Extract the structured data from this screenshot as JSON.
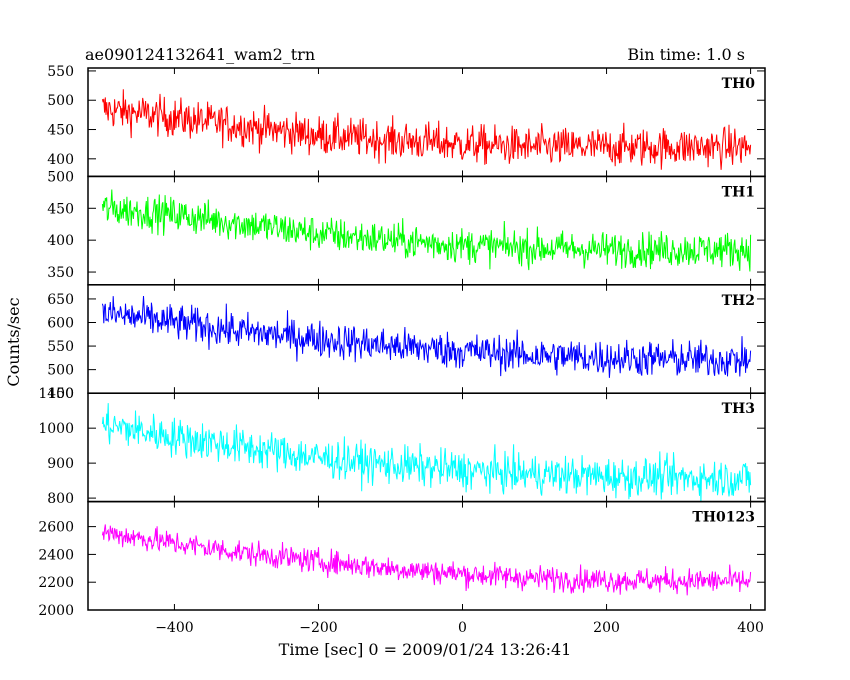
{
  "header": {
    "title": "ae090124132641_wam2_trn",
    "bin_time": "Bin time: 1.0 s"
  },
  "chart_data": {
    "type": "line",
    "title": "ae090124132641_wam2_trn",
    "subtitle": "Bin time: 1.0 s",
    "xlabel": "Time [sec] 0 = 2009/01/24 13:26:41",
    "ylabel": "Counts/sec",
    "xlim": [
      -520,
      420
    ],
    "x_ticks": [
      -400,
      -200,
      0,
      200,
      400
    ],
    "x_tick_labels": [
      "−400",
      "−200",
      "0",
      "200",
      "400"
    ],
    "x_range": [
      -500,
      400
    ],
    "grid": false,
    "series": [
      {
        "name": "TH0",
        "color": "#ff0000",
        "ylim": [
          370,
          555
        ],
        "y_ticks": [
          400,
          450,
          500,
          550
        ],
        "trend": [
          [
            -500,
            485
          ],
          [
            -400,
            470
          ],
          [
            -300,
            455
          ],
          [
            -200,
            440
          ],
          [
            -100,
            432
          ],
          [
            0,
            425
          ],
          [
            100,
            420
          ],
          [
            200,
            420
          ],
          [
            300,
            420
          ],
          [
            400,
            420
          ]
        ],
        "noise": 30
      },
      {
        "name": "TH1",
        "color": "#00ff00",
        "ylim": [
          330,
          500
        ],
        "y_ticks": [
          350,
          400,
          450,
          500
        ],
        "trend": [
          [
            -500,
            450
          ],
          [
            -400,
            440
          ],
          [
            -300,
            425
          ],
          [
            -200,
            410
          ],
          [
            -100,
            400
          ],
          [
            0,
            392
          ],
          [
            100,
            388
          ],
          [
            200,
            385
          ],
          [
            300,
            385
          ],
          [
            400,
            385
          ]
        ],
        "noise": 25
      },
      {
        "name": "TH2",
        "color": "#0000ff",
        "ylim": [
          450,
          680
        ],
        "y_ticks": [
          450,
          500,
          550,
          600,
          650
        ],
        "trend": [
          [
            -500,
            620
          ],
          [
            -400,
            600
          ],
          [
            -300,
            580
          ],
          [
            -200,
            565
          ],
          [
            -100,
            550
          ],
          [
            0,
            540
          ],
          [
            100,
            530
          ],
          [
            200,
            525
          ],
          [
            300,
            522
          ],
          [
            400,
            520
          ]
        ],
        "noise": 35
      },
      {
        "name": "TH3",
        "color": "#00ffff",
        "ylim": [
          790,
          1100
        ],
        "y_ticks": [
          800,
          900,
          1000,
          1100
        ],
        "trend": [
          [
            -500,
            1010
          ],
          [
            -400,
            975
          ],
          [
            -300,
            945
          ],
          [
            -200,
            915
          ],
          [
            -100,
            895
          ],
          [
            0,
            880
          ],
          [
            100,
            868
          ],
          [
            200,
            862
          ],
          [
            300,
            858
          ],
          [
            400,
            856
          ]
        ],
        "noise": 50
      },
      {
        "name": "TH0123",
        "color": "#ff00ff",
        "ylim": [
          2000,
          2780
        ],
        "y_ticks": [
          2000,
          2200,
          2400,
          2600
        ],
        "trend": [
          [
            -500,
            2560
          ],
          [
            -400,
            2480
          ],
          [
            -300,
            2410
          ],
          [
            -200,
            2350
          ],
          [
            -100,
            2300
          ],
          [
            0,
            2260
          ],
          [
            100,
            2230
          ],
          [
            200,
            2215
          ],
          [
            300,
            2210
          ],
          [
            400,
            2205
          ]
        ],
        "noise": 80
      }
    ]
  }
}
